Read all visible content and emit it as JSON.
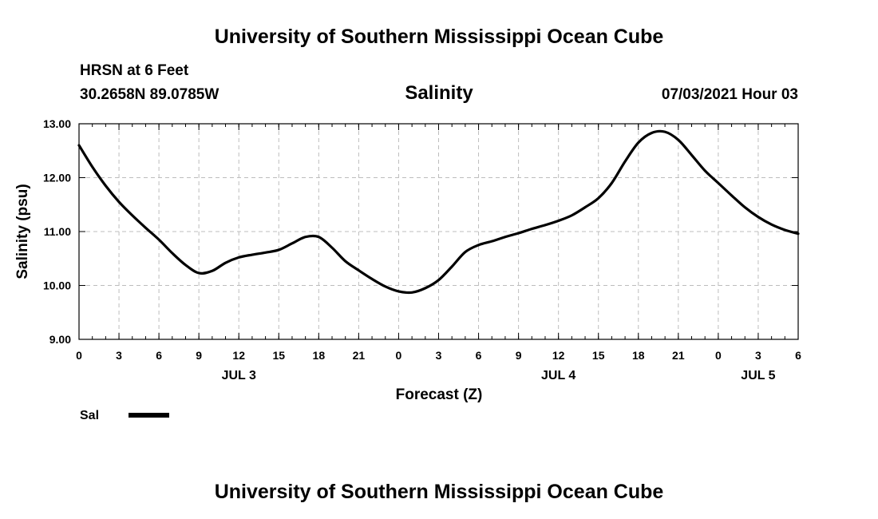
{
  "header": {
    "title": "University of Southern Mississippi Ocean Cube",
    "station": "HRSN at 6 Feet",
    "coords": "30.2658N  89.0785W",
    "date": "07/03/2021 Hour 03"
  },
  "footer": {
    "title": "University of Southern Mississippi Ocean Cube"
  },
  "chart_data": {
    "type": "line",
    "title": "Salinity",
    "xlabel": "Forecast (Z)",
    "ylabel": "Salinity (psu)",
    "xlim": [
      0,
      54
    ],
    "ylim": [
      9,
      13
    ],
    "x_ticks": [
      0,
      3,
      6,
      9,
      12,
      15,
      18,
      21,
      24,
      27,
      30,
      33,
      36,
      39,
      42,
      45,
      48,
      51,
      54
    ],
    "x_tick_labels": [
      "0",
      "3",
      "6",
      "9",
      "12",
      "15",
      "18",
      "21",
      "0",
      "3",
      "6",
      "9",
      "12",
      "15",
      "18",
      "21",
      "0",
      "3",
      "6"
    ],
    "y_ticks": [
      9,
      10,
      11,
      12,
      13
    ],
    "y_tick_labels": [
      "9.00",
      "10.00",
      "11.00",
      "12.00",
      "13.00"
    ],
    "day_labels": [
      {
        "x": 12,
        "label": "JUL 3"
      },
      {
        "x": 36,
        "label": "JUL 4"
      },
      {
        "x": 51,
        "label": "JUL 5"
      }
    ],
    "grid": true,
    "legend_position": "bottom-left",
    "series": [
      {
        "name": "Sal",
        "color": "#000000",
        "x": [
          0,
          1,
          2,
          3,
          4,
          5,
          6,
          7,
          8,
          9,
          10,
          11,
          12,
          13,
          14,
          15,
          16,
          17,
          18,
          19,
          20,
          21,
          22,
          23,
          24,
          25,
          26,
          27,
          28,
          29,
          30,
          31,
          32,
          33,
          34,
          35,
          36,
          37,
          38,
          39,
          40,
          41,
          42,
          43,
          44,
          45,
          46,
          47,
          48,
          49,
          50,
          51,
          52,
          53,
          54
        ],
        "values": [
          12.6,
          12.2,
          11.85,
          11.55,
          11.3,
          11.07,
          10.85,
          10.6,
          10.38,
          10.23,
          10.27,
          10.42,
          10.52,
          10.57,
          10.61,
          10.66,
          10.78,
          10.9,
          10.9,
          10.7,
          10.45,
          10.28,
          10.12,
          9.98,
          9.89,
          9.87,
          9.95,
          10.1,
          10.35,
          10.62,
          10.75,
          10.82,
          10.9,
          10.97,
          11.05,
          11.12,
          11.2,
          11.3,
          11.45,
          11.62,
          11.9,
          12.3,
          12.65,
          12.83,
          12.85,
          12.7,
          12.42,
          12.13,
          11.9,
          11.67,
          11.45,
          11.27,
          11.13,
          11.03,
          10.96
        ]
      }
    ]
  }
}
